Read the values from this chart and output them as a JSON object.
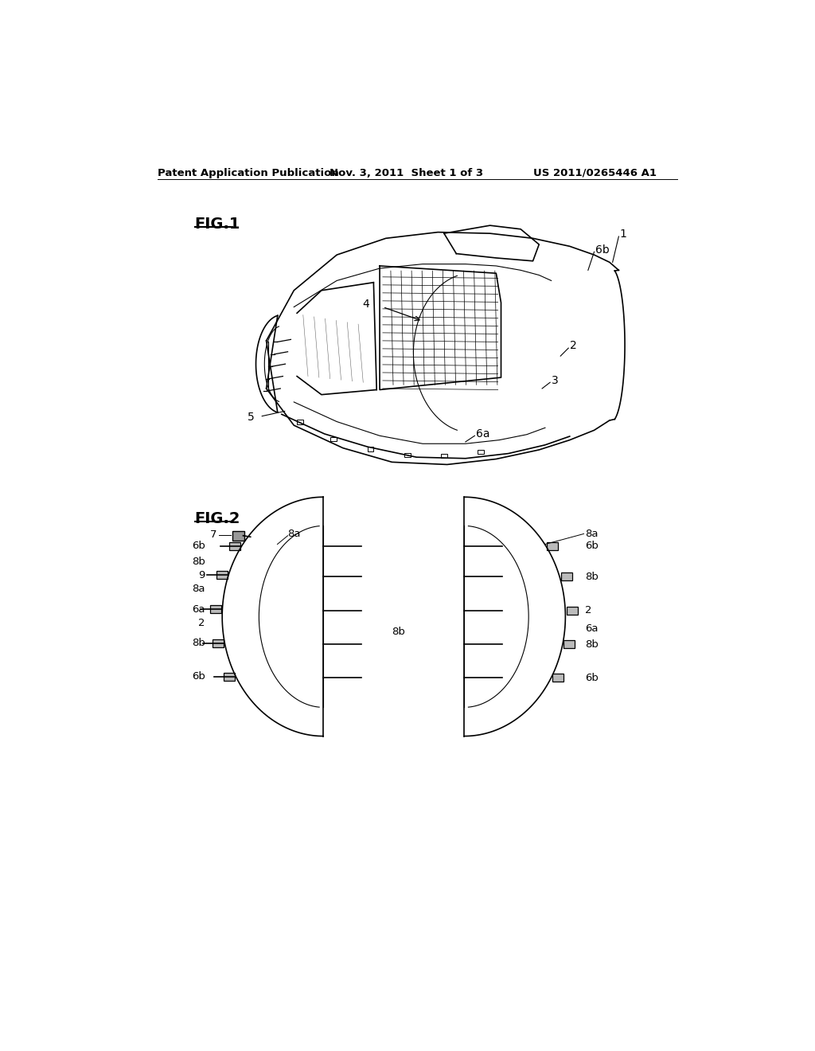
{
  "header_left": "Patent Application Publication",
  "header_mid": "Nov. 3, 2011  Sheet 1 of 3",
  "header_right": "US 2011/0265446 A1",
  "fig1_label": "FIG.1",
  "fig2_label": "FIG.2",
  "bg_color": "#ffffff",
  "line_color": "#000000"
}
